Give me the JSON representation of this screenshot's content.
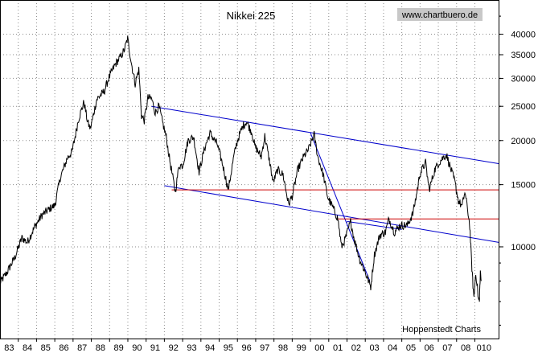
{
  "chart_data": {
    "type": "line",
    "title": "Nikkei 225",
    "watermark": "www.chartbuero.de",
    "credit": "Hoppenstedt Charts",
    "y_scale": "log",
    "ylim": [
      5500,
      50000
    ],
    "xlim": [
      1983.0,
      2010.3
    ],
    "x_tick_labels": [
      "83",
      "84",
      "85",
      "86",
      "87",
      "88",
      "89",
      "90",
      "91",
      "92",
      "93",
      "94",
      "95",
      "96",
      "97",
      "98",
      "99",
      "00",
      "01",
      "02",
      "03",
      "04",
      "05",
      "06",
      "07",
      "08",
      "010"
    ],
    "y_ticks": [
      10000,
      15000,
      20000,
      25000,
      30000,
      35000,
      40000
    ],
    "y_tick_labels": [
      "10000",
      "15000",
      "20000",
      "25000",
      "30000",
      "35000",
      "40000"
    ],
    "series": [
      {
        "name": "Nikkei 225",
        "color": "#000000",
        "points": [
          [
            1983.0,
            7900
          ],
          [
            1983.4,
            8500
          ],
          [
            1983.8,
            9300
          ],
          [
            1984.2,
            10600
          ],
          [
            1984.5,
            10300
          ],
          [
            1984.9,
            11400
          ],
          [
            1985.3,
            12300
          ],
          [
            1985.7,
            12800
          ],
          [
            1986.0,
            13100
          ],
          [
            1986.3,
            15700
          ],
          [
            1986.7,
            17900
          ],
          [
            1986.95,
            18600
          ],
          [
            1987.3,
            23000
          ],
          [
            1987.6,
            25700
          ],
          [
            1987.8,
            22500
          ],
          [
            1987.95,
            21600
          ],
          [
            1988.3,
            26200
          ],
          [
            1988.7,
            27500
          ],
          [
            1988.95,
            30000
          ],
          [
            1989.3,
            32800
          ],
          [
            1989.6,
            34500
          ],
          [
            1989.8,
            36000
          ],
          [
            1989.99,
            38900
          ],
          [
            1990.2,
            33000
          ],
          [
            1990.4,
            29000
          ],
          [
            1990.6,
            31800
          ],
          [
            1990.75,
            23500
          ],
          [
            1990.9,
            22800
          ],
          [
            1991.1,
            26400
          ],
          [
            1991.3,
            26300
          ],
          [
            1991.5,
            24000
          ],
          [
            1991.7,
            25000
          ],
          [
            1991.9,
            22500
          ],
          [
            1992.1,
            20500
          ],
          [
            1992.3,
            17500
          ],
          [
            1992.6,
            14300
          ],
          [
            1992.8,
            17000
          ],
          [
            1993.0,
            17000
          ],
          [
            1993.3,
            20000
          ],
          [
            1993.6,
            20500
          ],
          [
            1993.9,
            16300
          ],
          [
            1994.2,
            19000
          ],
          [
            1994.5,
            21000
          ],
          [
            1994.9,
            19500
          ],
          [
            1995.2,
            17000
          ],
          [
            1995.5,
            14500
          ],
          [
            1995.8,
            18000
          ],
          [
            1996.0,
            20000
          ],
          [
            1996.3,
            22000
          ],
          [
            1996.5,
            22600
          ],
          [
            1996.8,
            21000
          ],
          [
            1996.95,
            19300
          ],
          [
            1997.3,
            18000
          ],
          [
            1997.5,
            20600
          ],
          [
            1997.8,
            17000
          ],
          [
            1997.95,
            15200
          ],
          [
            1998.2,
            16500
          ],
          [
            1998.5,
            16000
          ],
          [
            1998.8,
            13200
          ],
          [
            1999.0,
            13900
          ],
          [
            1999.3,
            16500
          ],
          [
            1999.6,
            17900
          ],
          [
            1999.9,
            18900
          ],
          [
            2000.2,
            20800
          ],
          [
            2000.4,
            18000
          ],
          [
            2000.7,
            16000
          ],
          [
            2000.95,
            13800
          ],
          [
            2001.2,
            13000
          ],
          [
            2001.5,
            12000
          ],
          [
            2001.7,
            10000
          ],
          [
            2001.9,
            10500
          ],
          [
            2002.2,
            11800
          ],
          [
            2002.4,
            10500
          ],
          [
            2002.7,
            9200
          ],
          [
            2002.95,
            8600
          ],
          [
            2003.3,
            7700
          ],
          [
            2003.5,
            9500
          ],
          [
            2003.8,
            10800
          ],
          [
            2004.1,
            11000
          ],
          [
            2004.3,
            12000
          ],
          [
            2004.6,
            11000
          ],
          [
            2004.9,
            11500
          ],
          [
            2005.3,
            11500
          ],
          [
            2005.6,
            12400
          ],
          [
            2005.8,
            14000
          ],
          [
            2005.99,
            16100
          ],
          [
            2006.3,
            17300
          ],
          [
            2006.5,
            14500
          ],
          [
            2006.8,
            16500
          ],
          [
            2006.99,
            17200
          ],
          [
            2007.3,
            18000
          ],
          [
            2007.45,
            18200
          ],
          [
            2007.7,
            16500
          ],
          [
            2007.9,
            15300
          ],
          [
            2008.1,
            13500
          ],
          [
            2008.3,
            13000
          ],
          [
            2008.45,
            14300
          ],
          [
            2008.6,
            12800
          ],
          [
            2008.72,
            11500
          ],
          [
            2008.8,
            9500
          ],
          [
            2008.88,
            8000
          ],
          [
            2008.95,
            7200
          ],
          [
            2009.05,
            8500
          ],
          [
            2009.2,
            7100
          ],
          [
            2009.25,
            7000
          ],
          [
            2009.3,
            8500
          ],
          [
            2009.35,
            8000
          ]
        ]
      }
    ],
    "trendlines": [
      {
        "name": "upper channel line",
        "color": "#0000cc",
        "start": [
          1991.3,
          25000
        ],
        "end": [
          2010.3,
          17200
        ]
      },
      {
        "name": "lower channel line",
        "color": "#0000cc",
        "start": [
          1992.0,
          14900
        ],
        "end": [
          2010.3,
          10300
        ]
      },
      {
        "name": "decline line 2000-2003",
        "color": "#0000cc",
        "start": [
          2000.0,
          21000
        ],
        "end": [
          2003.25,
          8000
        ]
      },
      {
        "name": "resistance 2003-2005",
        "color": "#0000cc",
        "start": [
          2002.0,
          11800
        ],
        "end": [
          2005.0,
          11200
        ]
      }
    ],
    "horizontal_lines": [
      {
        "name": "support 14500",
        "color": "#cc0000",
        "value": 14500,
        "x_start": 1992.4,
        "x_end": 2010.3
      },
      {
        "name": "support 12000",
        "color": "#cc0000",
        "value": 12000,
        "x_start": 2001.5,
        "x_end": 2010.3
      }
    ]
  }
}
